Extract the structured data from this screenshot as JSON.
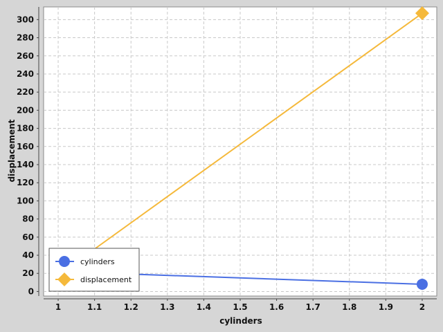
{
  "chart_data": {
    "type": "line",
    "xlabel": "cylinders",
    "ylabel": "displacement",
    "xlim": [
      0.96,
      2.04
    ],
    "ylim": [
      -5,
      314
    ],
    "x_ticks": [
      1,
      1.1,
      1.2,
      1.3,
      1.4,
      1.5,
      1.6,
      1.7,
      1.8,
      1.9,
      2
    ],
    "y_ticks": [
      0,
      20,
      40,
      60,
      80,
      100,
      120,
      140,
      160,
      180,
      200,
      220,
      240,
      260,
      280,
      300
    ],
    "grid": true,
    "legend_position": "bottom-left",
    "series": [
      {
        "name": "cylinders",
        "color": "#4a6fe3",
        "marker": "circle",
        "x": [
          1,
          2
        ],
        "y": [
          22,
          8
        ]
      },
      {
        "name": "displacement",
        "color": "#f5b93b",
        "marker": "diamond",
        "x": [
          1,
          2
        ],
        "y": [
          18,
          307
        ]
      }
    ]
  }
}
